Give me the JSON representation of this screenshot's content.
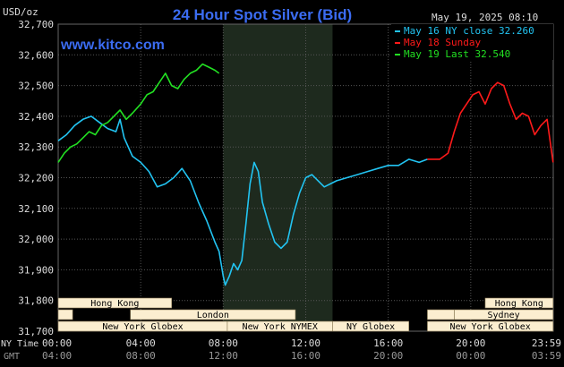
{
  "header": {
    "currency": "USD/oz",
    "title": "24 Hour Spot Silver (Bid)",
    "timestamp": "May 19, 2025 08:10",
    "brand": "www.kitco.com"
  },
  "legend": [
    {
      "label": "May 16 NY close 32.260",
      "color": "#22c4f2"
    },
    {
      "label": "May 18 Sunday",
      "color": "#ff1a1a"
    },
    {
      "label": "May 19 Last 32.540",
      "color": "#22e022"
    }
  ],
  "axis_labels": {
    "ny_time": "NY Time",
    "gmt": "GMT"
  },
  "chart_data": {
    "type": "line",
    "title": "24 Hour Spot Silver (Bid)",
    "ylabel": "USD/oz",
    "ylim": [
      31.7,
      32.7
    ],
    "yticks": [
      "31,700",
      "31,800",
      "31,900",
      "32,000",
      "32,100",
      "32,200",
      "32,300",
      "32,400",
      "32,500",
      "32,600",
      "32,700"
    ],
    "yvalues": [
      31.7,
      31.8,
      31.9,
      32.0,
      32.1,
      32.2,
      32.3,
      32.4,
      32.5,
      32.6,
      32.7
    ],
    "xlim": [
      0,
      24
    ],
    "xticks": [
      {
        "x": 0,
        "ny": "00:00",
        "gmt": "04:00"
      },
      {
        "x": 4,
        "ny": "04:00",
        "gmt": "08:00"
      },
      {
        "x": 8,
        "ny": "08:00",
        "gmt": "12:00"
      },
      {
        "x": 12,
        "ny": "12:00",
        "gmt": "16:00"
      },
      {
        "x": 16,
        "ny": "16:00",
        "gmt": "20:00"
      },
      {
        "x": 20,
        "ny": "20:00",
        "gmt": "00:00"
      },
      {
        "x": 24,
        "ny": "23:59",
        "gmt": "03:59"
      }
    ],
    "highlight_band": [
      8,
      13.3
    ],
    "series": [
      {
        "name": "May 16 NY close 32.260",
        "color": "#22c4f2",
        "x": [
          0,
          0.4,
          0.8,
          1.2,
          1.6,
          2.0,
          2.4,
          2.8,
          3.0,
          3.2,
          3.6,
          4.0,
          4.4,
          4.8,
          5.2,
          5.6,
          6.0,
          6.4,
          6.8,
          7.2,
          7.6,
          7.8,
          8.0,
          8.1,
          8.3,
          8.5,
          8.7,
          8.9,
          9.1,
          9.3,
          9.5,
          9.7,
          9.9,
          10.2,
          10.5,
          10.8,
          11.1,
          11.4,
          11.7,
          12.0,
          12.3,
          12.6,
          12.9,
          13.2,
          13.5,
          14.0,
          14.5,
          15.0,
          15.5,
          16.0,
          16.5,
          17.0,
          17.5,
          17.9
        ],
        "values": [
          32.32,
          32.34,
          32.37,
          32.39,
          32.4,
          32.38,
          32.36,
          32.35,
          32.39,
          32.33,
          32.27,
          32.25,
          32.22,
          32.17,
          32.18,
          32.2,
          32.23,
          32.19,
          32.12,
          32.06,
          31.99,
          31.96,
          31.88,
          31.85,
          31.88,
          31.92,
          31.9,
          31.93,
          32.05,
          32.18,
          32.25,
          32.22,
          32.12,
          32.05,
          31.99,
          31.97,
          31.99,
          32.08,
          32.15,
          32.2,
          32.21,
          32.19,
          32.17,
          32.18,
          32.19,
          32.2,
          32.21,
          32.22,
          32.23,
          32.24,
          32.24,
          32.26,
          32.25,
          32.26
        ]
      },
      {
        "name": "May 18 Sunday",
        "color": "#ff1a1a",
        "x": [
          17.9,
          18.5,
          18.9,
          19.2,
          19.5,
          19.8,
          20.1,
          20.4,
          20.7,
          21.0,
          21.3,
          21.6,
          21.9,
          22.2,
          22.5,
          22.8,
          23.1,
          23.4,
          23.7,
          23.99
        ],
        "values": [
          32.26,
          32.26,
          32.28,
          32.35,
          32.41,
          32.44,
          32.47,
          32.48,
          32.44,
          32.49,
          32.51,
          32.5,
          32.44,
          32.39,
          32.41,
          32.4,
          32.34,
          32.37,
          32.39,
          32.25
        ]
      },
      {
        "name": "May 19 Last 32.540",
        "color": "#22e022",
        "x": [
          0,
          0.3,
          0.6,
          0.9,
          1.2,
          1.5,
          1.8,
          2.1,
          2.4,
          2.7,
          3.0,
          3.3,
          3.6,
          4.0,
          4.3,
          4.6,
          4.9,
          5.2,
          5.5,
          5.8,
          6.1,
          6.4,
          6.7,
          7.0,
          7.3,
          7.6,
          7.8
        ],
        "values": [
          32.25,
          32.28,
          32.3,
          32.31,
          32.33,
          32.35,
          32.34,
          32.37,
          32.38,
          32.4,
          32.42,
          32.39,
          32.41,
          32.44,
          32.47,
          32.48,
          32.51,
          32.54,
          32.5,
          32.49,
          32.52,
          32.54,
          32.55,
          32.57,
          32.56,
          32.55,
          32.54
        ]
      }
    ]
  },
  "sessions": [
    {
      "name": "Hong Kong",
      "start": 0,
      "end": 5.5,
      "row": 0
    },
    {
      "name": "Hong Kong",
      "start": 20.7,
      "end": 23.99,
      "row": 0
    },
    {
      "name": "",
      "start": 0,
      "end": 0.7,
      "row": 1
    },
    {
      "name": "London",
      "start": 3.5,
      "end": 11.5,
      "row": 1
    },
    {
      "name": "Sydney",
      "start": 19.2,
      "end": 23.99,
      "row": 1
    },
    {
      "name": "",
      "start": 17.9,
      "end": 19.2,
      "row": 1
    },
    {
      "name": "New York Globex",
      "start": 0,
      "end": 8.2,
      "row": 2
    },
    {
      "name": "New York NYMEX",
      "start": 8.2,
      "end": 13.3,
      "row": 2
    },
    {
      "name": "NY Globex",
      "start": 13.3,
      "end": 17.0,
      "row": 2
    },
    {
      "name": "New York Globex",
      "start": 17.9,
      "end": 23.99,
      "row": 2
    }
  ],
  "colors": {
    "background": "#000000",
    "grid": "#555555",
    "band": "#1e2a1e",
    "title": "#3b6cf2",
    "brand": "#3b6cf2",
    "session_fill": "#fbeed0",
    "session_text": "#000000",
    "axis_text": "#dddddd",
    "gmt_text": "#999999"
  }
}
